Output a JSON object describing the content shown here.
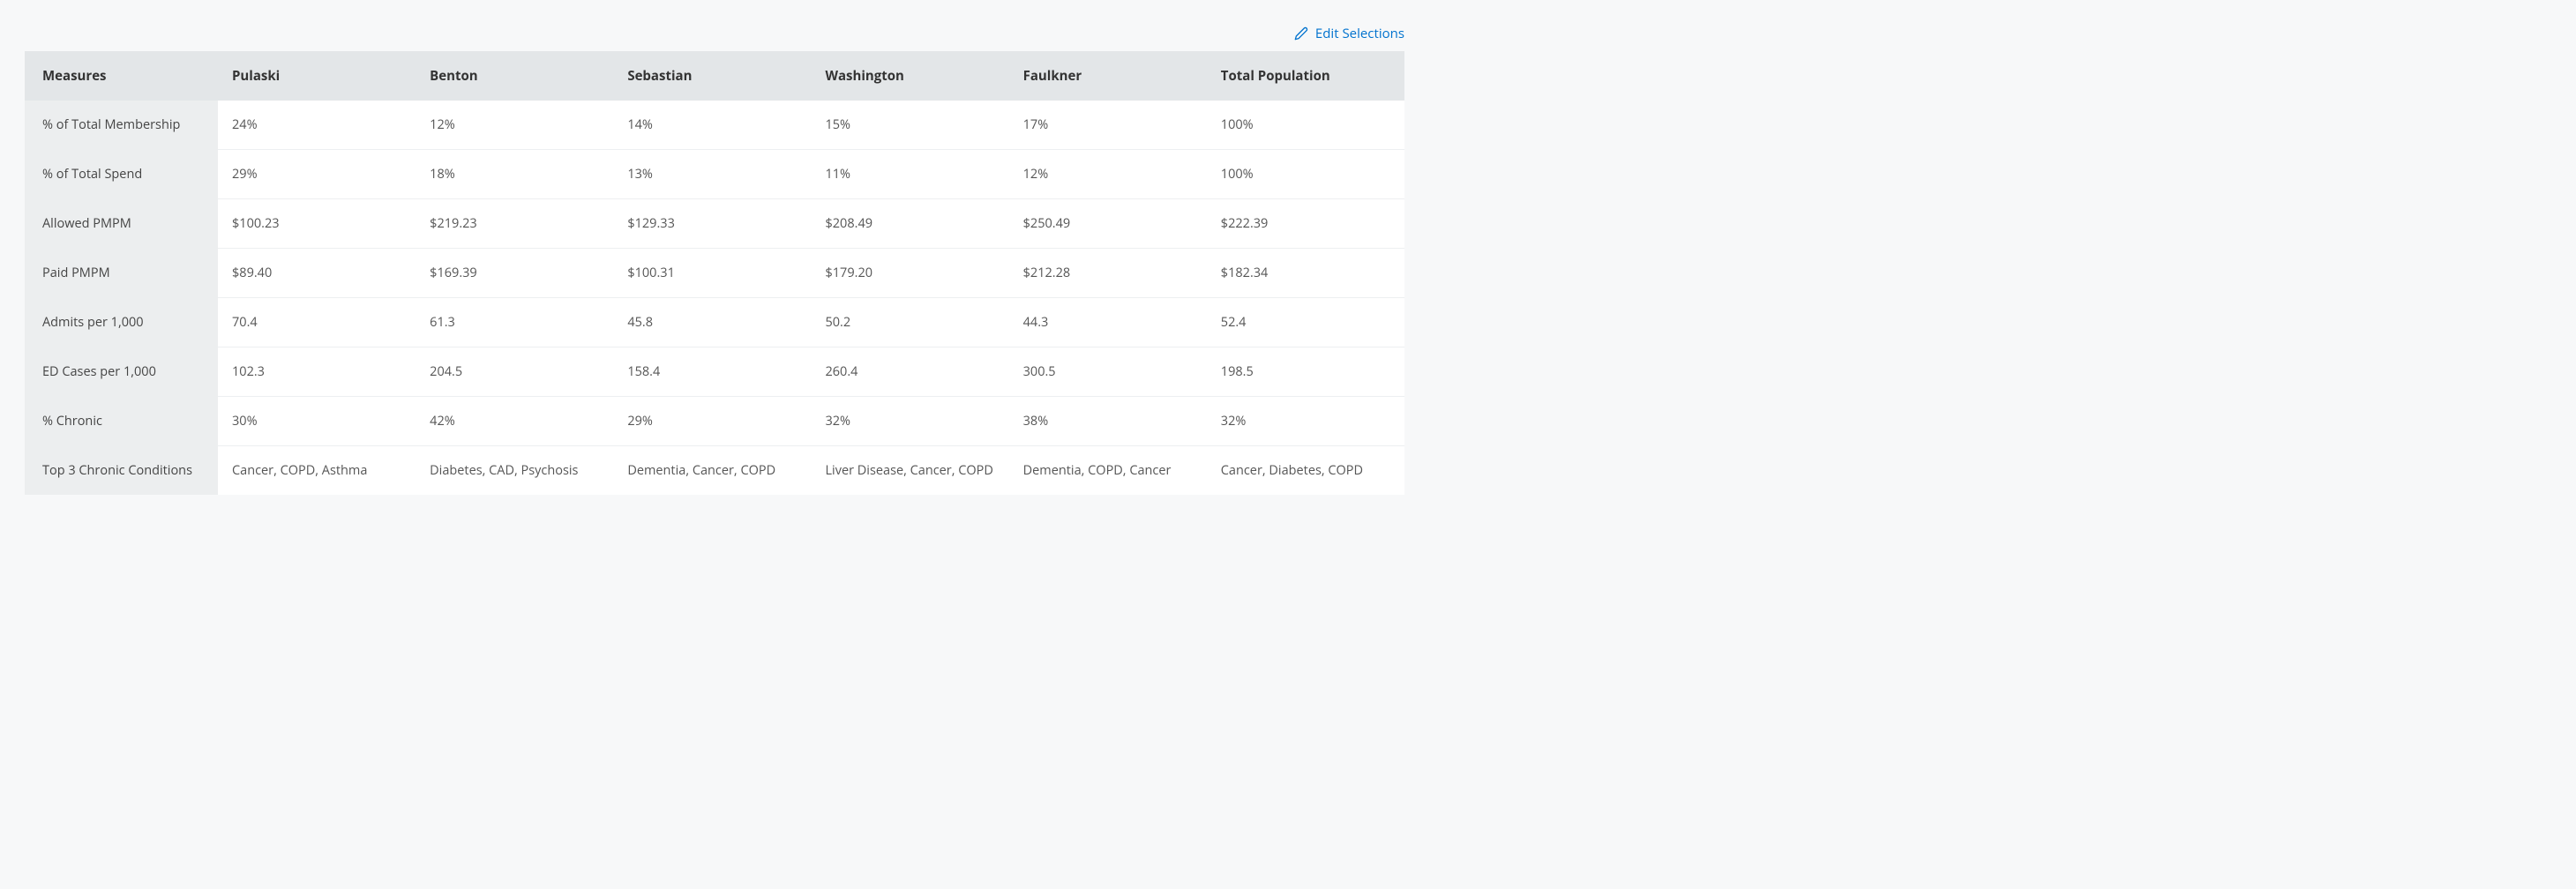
{
  "edit_label": "Edit Selections",
  "colors": {
    "page_bg": "#f7f8f9",
    "header_bg": "#e3e6e8",
    "measure_col_bg": "#eceeef",
    "cell_bg": "#ffffff",
    "border": "#edeff1",
    "text": "#333333",
    "cell_text": "#555555",
    "link": "#0072ce"
  },
  "table": {
    "columns": [
      "Measures",
      "Pulaski",
      "Benton",
      "Sebastian",
      "Washington",
      "Faulkner",
      "Total Population"
    ],
    "rows": [
      {
        "measure": "% of Total Membership",
        "values": [
          "24%",
          "12%",
          "14%",
          "15%",
          "17%",
          "100%"
        ]
      },
      {
        "measure": "% of Total Spend",
        "values": [
          "29%",
          "18%",
          "13%",
          "11%",
          "12%",
          "100%"
        ]
      },
      {
        "measure": "Allowed PMPM",
        "values": [
          "$100.23",
          "$219.23",
          "$129.33",
          "$208.49",
          "$250.49",
          "$222.39"
        ]
      },
      {
        "measure": "Paid PMPM",
        "values": [
          "$89.40",
          "$169.39",
          "$100.31",
          "$179.20",
          "$212.28",
          "$182.34"
        ]
      },
      {
        "measure": "Admits per 1,000",
        "values": [
          "70.4",
          "61.3",
          "45.8",
          "50.2",
          "44.3",
          "52.4"
        ]
      },
      {
        "measure": "ED Cases per 1,000",
        "values": [
          "102.3",
          "204.5",
          "158.4",
          "260.4",
          "300.5",
          "198.5"
        ]
      },
      {
        "measure": "% Chronic",
        "values": [
          "30%",
          "42%",
          "29%",
          "32%",
          "38%",
          "32%"
        ]
      },
      {
        "measure": "Top 3 Chronic Conditions",
        "values": [
          "Cancer, COPD, Asthma",
          "Diabetes, CAD, Psychosis",
          "Dementia, Cancer, COPD",
          "Liver Disease, Cancer, COPD",
          "Dementia, COPD, Cancer",
          "Cancer, Diabetes, COPD"
        ]
      }
    ]
  }
}
